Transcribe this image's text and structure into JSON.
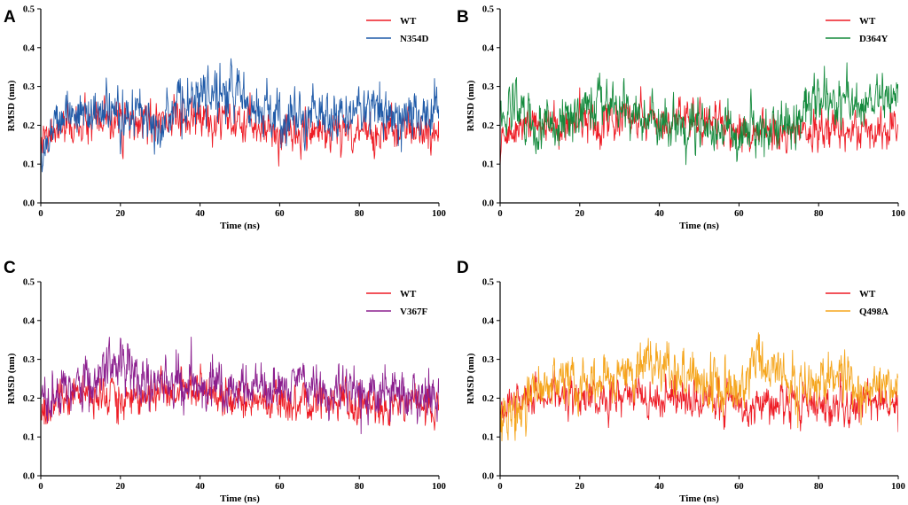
{
  "figure": {
    "description_free": true
  },
  "chart_data": [
    {
      "panel": "A",
      "type": "line",
      "xlabel": "Time (ns)",
      "ylabel": "RMSD (nm)",
      "xlim": [
        0,
        100
      ],
      "ylim": [
        0,
        0.5
      ],
      "xticks": [
        0,
        20,
        40,
        60,
        80,
        100
      ],
      "yticks": [
        0.0,
        0.1,
        0.2,
        0.3,
        0.4,
        0.5
      ],
      "x": [
        0,
        5,
        10,
        15,
        20,
        25,
        30,
        35,
        40,
        45,
        50,
        55,
        60,
        65,
        70,
        75,
        80,
        85,
        90,
        95,
        100
      ],
      "series": [
        {
          "name": "WT",
          "color": "#ee1c25",
          "values": [
            0.15,
            0.19,
            0.2,
            0.2,
            0.21,
            0.2,
            0.21,
            0.22,
            0.21,
            0.2,
            0.2,
            0.2,
            0.18,
            0.18,
            0.19,
            0.18,
            0.19,
            0.18,
            0.19,
            0.19,
            0.18
          ]
        },
        {
          "name": "N354D",
          "color": "#1f5aa8",
          "values": [
            0.13,
            0.24,
            0.23,
            0.23,
            0.22,
            0.23,
            0.22,
            0.25,
            0.26,
            0.3,
            0.27,
            0.25,
            0.21,
            0.22,
            0.23,
            0.22,
            0.24,
            0.25,
            0.23,
            0.22,
            0.24
          ]
        }
      ],
      "legend": "top-right"
    },
    {
      "panel": "B",
      "type": "line",
      "xlabel": "Time (ns)",
      "ylabel": "RMSD (nm)",
      "xlim": [
        0,
        100
      ],
      "ylim": [
        0,
        0.5
      ],
      "xticks": [
        0,
        20,
        40,
        60,
        80,
        100
      ],
      "yticks": [
        0.0,
        0.1,
        0.2,
        0.3,
        0.4,
        0.5
      ],
      "x": [
        0,
        5,
        10,
        15,
        20,
        25,
        30,
        35,
        40,
        45,
        50,
        55,
        60,
        65,
        70,
        75,
        80,
        85,
        90,
        95,
        100
      ],
      "series": [
        {
          "name": "WT",
          "color": "#ee1c25",
          "values": [
            0.15,
            0.2,
            0.21,
            0.2,
            0.2,
            0.21,
            0.21,
            0.22,
            0.21,
            0.21,
            0.22,
            0.2,
            0.19,
            0.18,
            0.18,
            0.18,
            0.18,
            0.19,
            0.19,
            0.19,
            0.18
          ]
        },
        {
          "name": "D364Y",
          "color": "#138a3c",
          "values": [
            0.22,
            0.25,
            0.21,
            0.2,
            0.23,
            0.28,
            0.24,
            0.22,
            0.21,
            0.2,
            0.2,
            0.19,
            0.18,
            0.19,
            0.2,
            0.23,
            0.28,
            0.26,
            0.26,
            0.27,
            0.28
          ]
        }
      ],
      "legend": "top-right"
    },
    {
      "panel": "C",
      "type": "line",
      "xlabel": "Time (ns)",
      "ylabel": "RMSD (nm)",
      "xlim": [
        0,
        100
      ],
      "ylim": [
        0,
        0.5
      ],
      "xticks": [
        0,
        20,
        40,
        60,
        80,
        100
      ],
      "yticks": [
        0.0,
        0.1,
        0.2,
        0.3,
        0.4,
        0.5
      ],
      "x": [
        0,
        5,
        10,
        15,
        20,
        25,
        30,
        35,
        40,
        45,
        50,
        55,
        60,
        65,
        70,
        75,
        80,
        85,
        90,
        95,
        100
      ],
      "series": [
        {
          "name": "WT",
          "color": "#ee1c25",
          "values": [
            0.15,
            0.2,
            0.21,
            0.21,
            0.2,
            0.21,
            0.22,
            0.22,
            0.21,
            0.2,
            0.2,
            0.19,
            0.18,
            0.18,
            0.18,
            0.19,
            0.18,
            0.18,
            0.19,
            0.18,
            0.18
          ]
        },
        {
          "name": "V367F",
          "color": "#8b1e8e",
          "values": [
            0.17,
            0.22,
            0.23,
            0.26,
            0.31,
            0.24,
            0.22,
            0.26,
            0.24,
            0.22,
            0.21,
            0.22,
            0.24,
            0.23,
            0.21,
            0.21,
            0.22,
            0.2,
            0.21,
            0.2,
            0.21
          ]
        }
      ],
      "legend": "top-right"
    },
    {
      "panel": "D",
      "type": "line",
      "xlabel": "Time (ns)",
      "ylabel": "RMSD (nm)",
      "xlim": [
        0,
        100
      ],
      "ylim": [
        0,
        0.5
      ],
      "xticks": [
        0,
        20,
        40,
        60,
        80,
        100
      ],
      "yticks": [
        0.0,
        0.1,
        0.2,
        0.3,
        0.4,
        0.5
      ],
      "x": [
        0,
        5,
        10,
        15,
        20,
        25,
        30,
        35,
        40,
        45,
        50,
        55,
        60,
        65,
        70,
        75,
        80,
        85,
        90,
        95,
        100
      ],
      "series": [
        {
          "name": "WT",
          "color": "#ee1c25",
          "values": [
            0.16,
            0.19,
            0.21,
            0.21,
            0.2,
            0.21,
            0.21,
            0.21,
            0.2,
            0.2,
            0.19,
            0.2,
            0.18,
            0.18,
            0.19,
            0.18,
            0.19,
            0.18,
            0.19,
            0.19,
            0.18
          ]
        },
        {
          "name": "Q498A",
          "color": "#f5a51c",
          "values": [
            0.13,
            0.17,
            0.22,
            0.25,
            0.24,
            0.23,
            0.25,
            0.28,
            0.27,
            0.26,
            0.24,
            0.22,
            0.22,
            0.3,
            0.26,
            0.23,
            0.24,
            0.26,
            0.22,
            0.23,
            0.21
          ]
        }
      ],
      "legend": "top-right"
    }
  ]
}
